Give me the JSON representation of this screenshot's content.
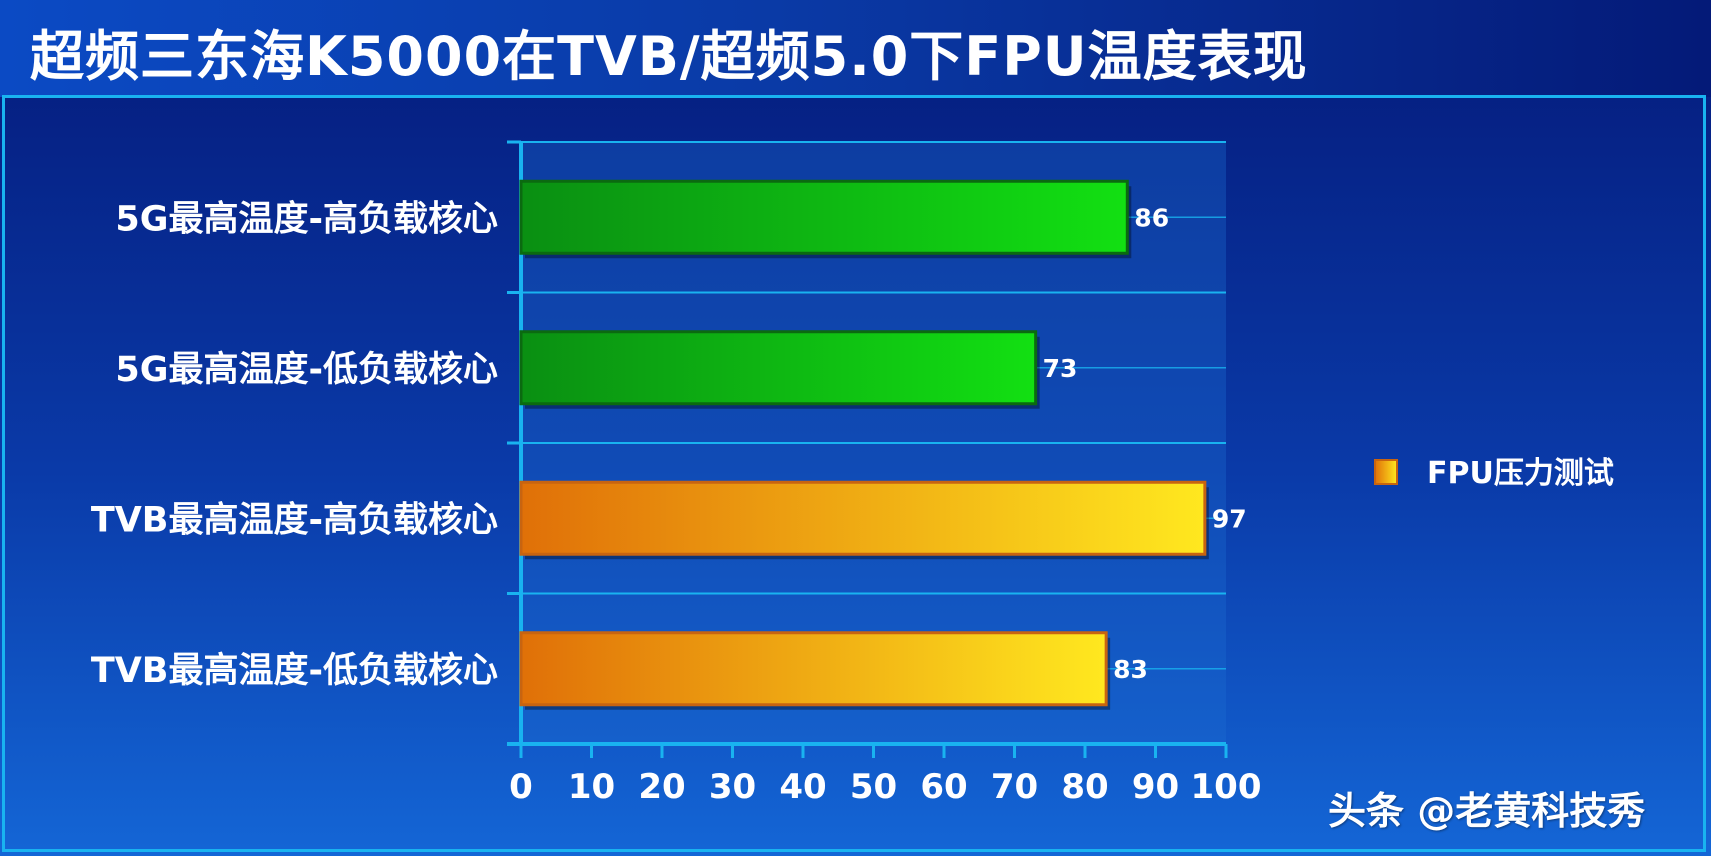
{
  "title": "超频三东海K5000在TVB/超频5.0下FPU温度表现",
  "watermark": "头条 @老黄科技秀",
  "colors": {
    "green_dark": "#0a8f12",
    "green_light": "#12e012",
    "green_edge": "#0b6a10",
    "orange_dark": "#e07008",
    "orange_light": "#ffe81f",
    "orange_edge": "#c86410",
    "axis": "#19b3f0"
  },
  "chart_data": {
    "type": "bar",
    "orientation": "horizontal",
    "categories": [
      "5G最高温度-高负载核心",
      "5G最高温度-低负载核心",
      "TVB最高温度-高负载核心",
      "TVB最高温度-低负载核心"
    ],
    "values": [
      86,
      73,
      97,
      83
    ],
    "bar_color_groups": [
      "green",
      "green",
      "orange",
      "orange"
    ],
    "xlim": [
      0,
      100
    ],
    "xticks": [
      0,
      10,
      20,
      30,
      40,
      50,
      60,
      70,
      80,
      90,
      100
    ],
    "legend": {
      "labels": [
        "FPU压力测试"
      ],
      "position": "right"
    },
    "grid": true
  }
}
